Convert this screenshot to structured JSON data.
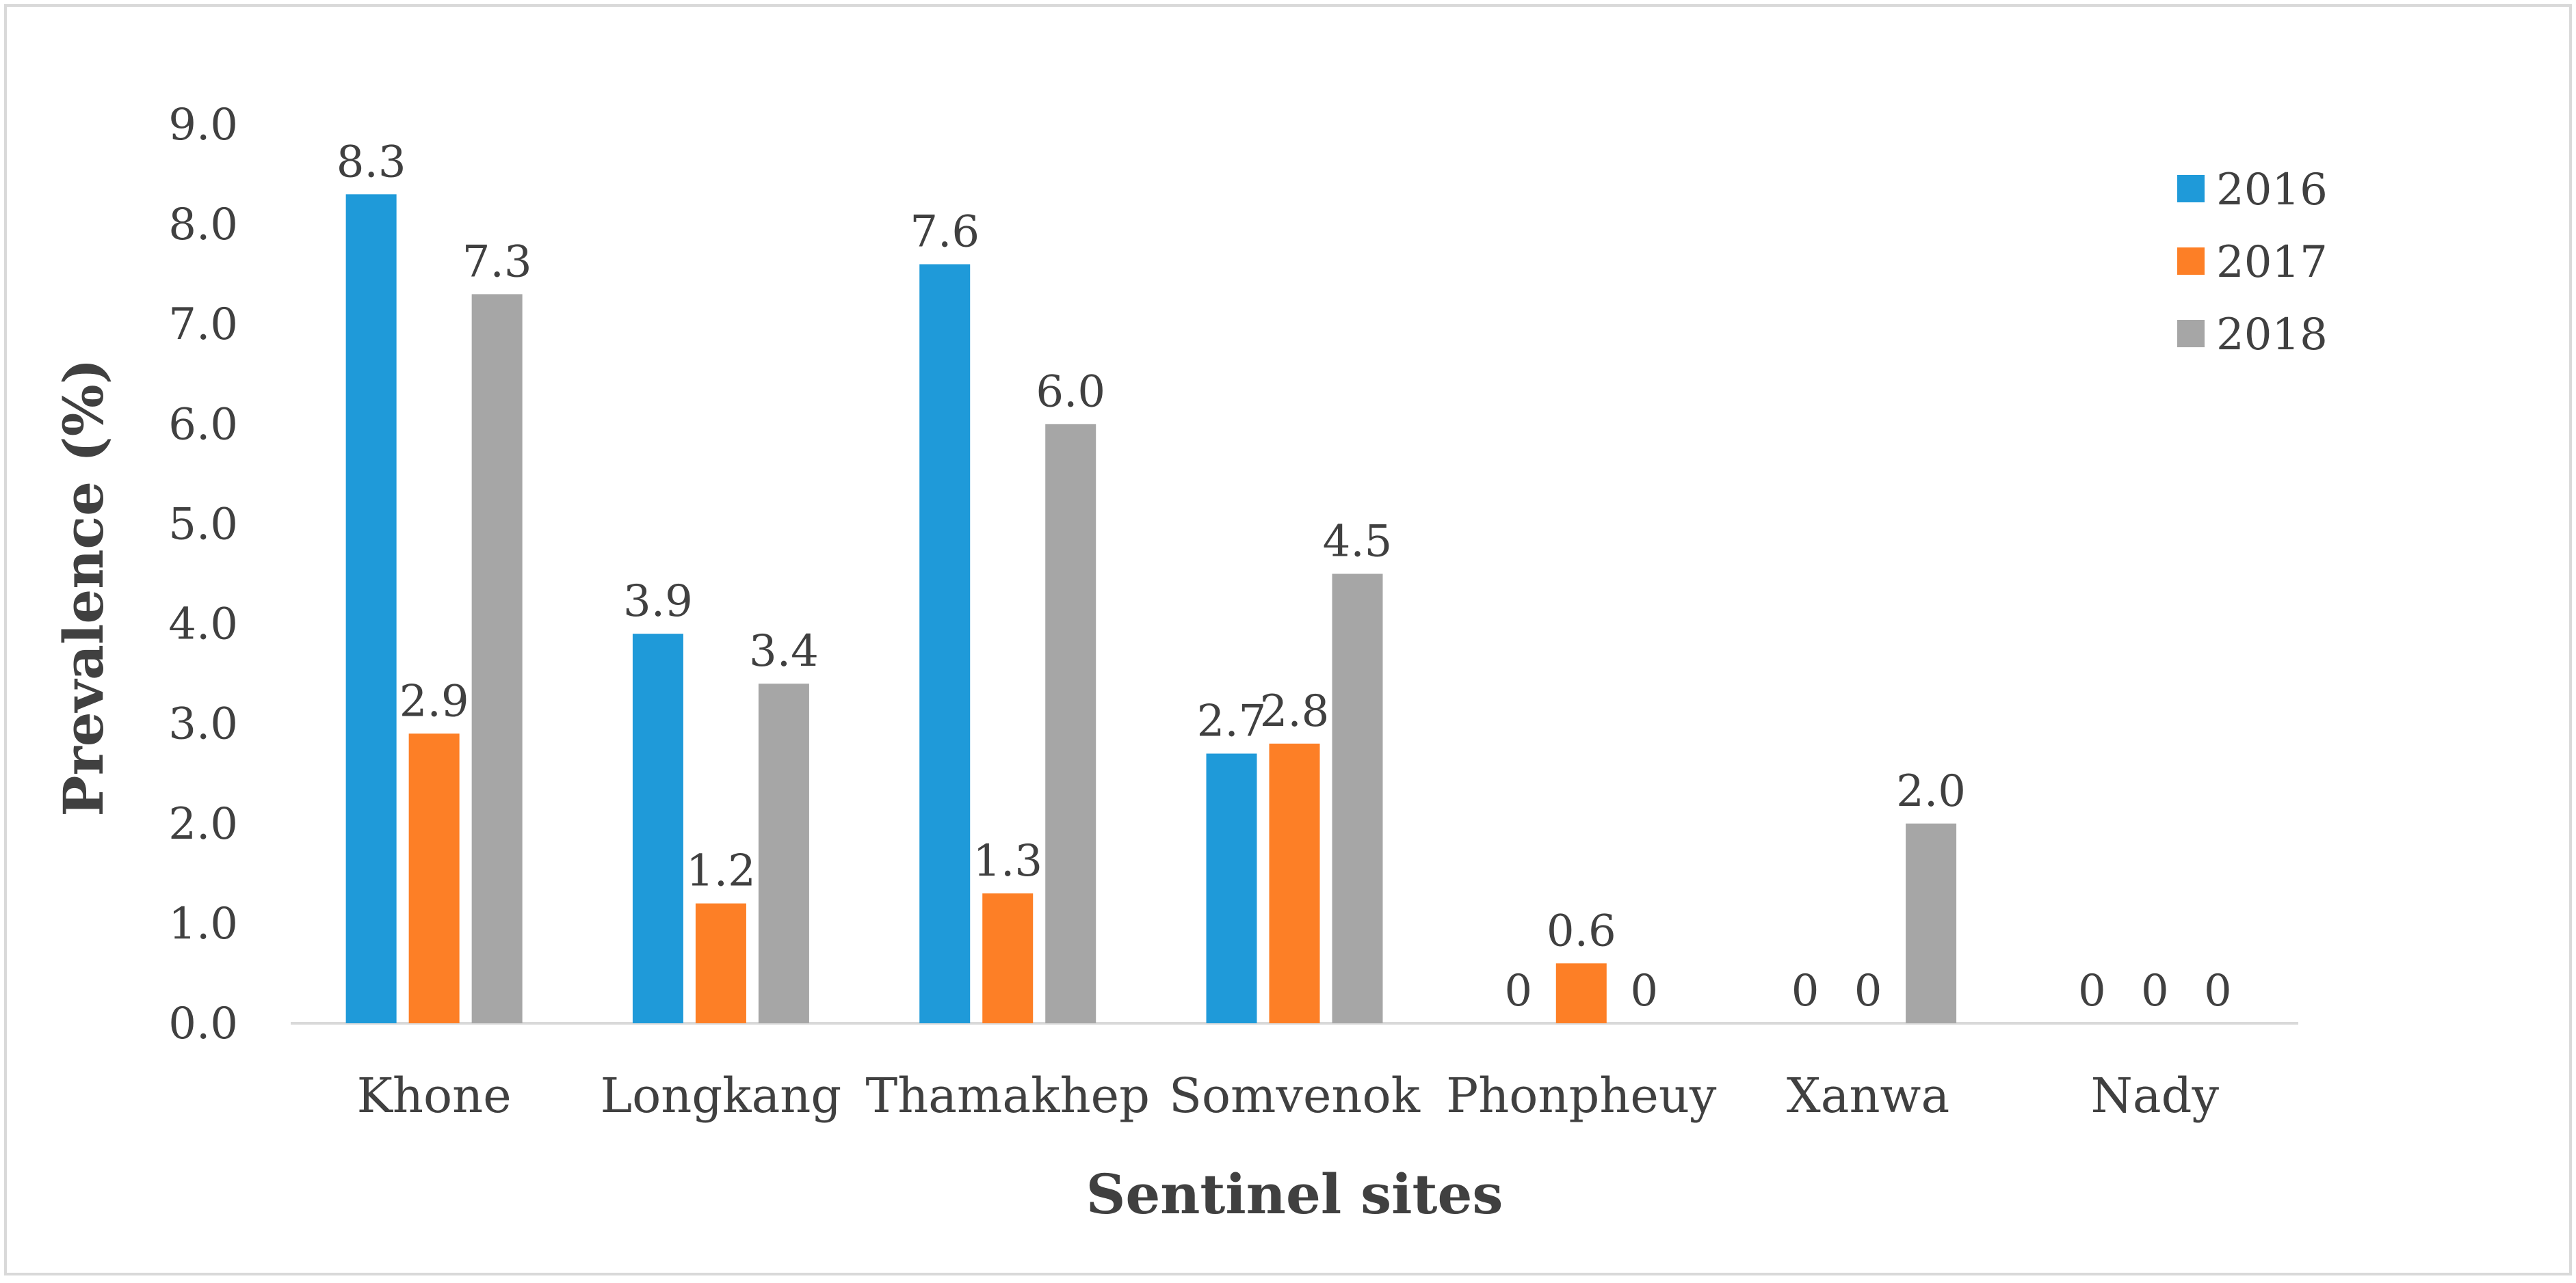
{
  "chart_data": {
    "type": "bar",
    "title": "",
    "xlabel": "Sentinel sites",
    "ylabel": "Prevalence (%)",
    "ylim": [
      0,
      9
    ],
    "yticks": [
      "0.0",
      "1.0",
      "2.0",
      "3.0",
      "4.0",
      "5.0",
      "6.0",
      "7.0",
      "8.0",
      "9.0"
    ],
    "grid": false,
    "legend_position": "top-right",
    "categories": [
      "Khone",
      "Longkang",
      "Thamakhep",
      "Somvenok",
      "Phonpheuy",
      "Xanwa",
      "Nady"
    ],
    "series": [
      {
        "name": "2016",
        "color": "#1f9ad9",
        "values": [
          8.3,
          3.9,
          7.6,
          2.7,
          0,
          0,
          0
        ],
        "labels": [
          "8.3",
          "3.9",
          "7.6",
          "2.7",
          "0",
          "0",
          "0"
        ]
      },
      {
        "name": "2017",
        "color": "#fd7f26",
        "values": [
          2.9,
          1.2,
          1.3,
          2.8,
          0.6,
          0,
          0
        ],
        "labels": [
          "2.9",
          "1.2",
          "1.3",
          "2.8",
          "0.6",
          "0",
          "0"
        ]
      },
      {
        "name": "2018",
        "color": "#a6a6a6",
        "values": [
          7.3,
          3.4,
          6.0,
          4.5,
          0,
          2.0,
          0
        ],
        "labels": [
          "7.3",
          "3.4",
          "6.0",
          "4.5",
          "0",
          "2.0",
          "0"
        ]
      }
    ]
  }
}
